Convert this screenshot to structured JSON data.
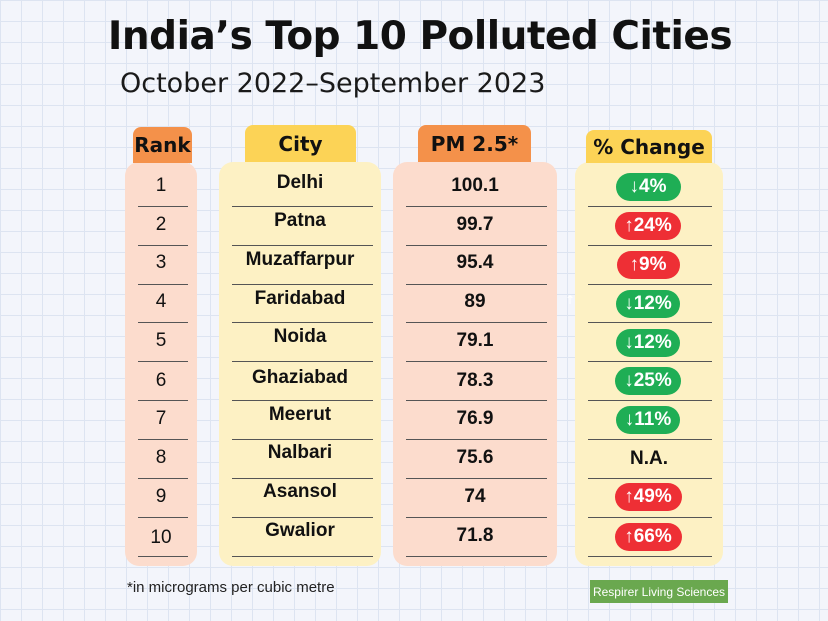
{
  "title": "India’s Top 10 Polluted Cities",
  "subtitle": "October 2022–September 2023",
  "columns": {
    "rank": "Rank",
    "city": "City",
    "pm": "PM 2.5*",
    "change": "% Change"
  },
  "colors": {
    "rank_header": "#f4914a",
    "rank_body": "#fcdccd",
    "city_header": "#fcd356",
    "city_body": "#fdf1c4",
    "pm_header": "#f4914a",
    "pm_body": "#fcdccd",
    "change_header": "#fcd356",
    "change_body": "#fdf1c4",
    "decrease": "#1fae55",
    "increase": "#ee2f35"
  },
  "chart_data": {
    "type": "table",
    "columns": [
      "Rank",
      "City",
      "PM 2.5*",
      "% Change"
    ],
    "rows": [
      {
        "rank": "1",
        "city": "Delhi",
        "pm": "100.1",
        "change": "↓4%",
        "direction": "down"
      },
      {
        "rank": "2",
        "city": "Patna",
        "pm": "99.7",
        "change": "↑24%",
        "direction": "up"
      },
      {
        "rank": "3",
        "city": "Muzaffarpur",
        "pm": "95.4",
        "change": "↑9%",
        "direction": "up"
      },
      {
        "rank": "4",
        "city": "Faridabad",
        "pm": "89",
        "change": "↓12%",
        "direction": "down"
      },
      {
        "rank": "5",
        "city": "Noida",
        "pm": "79.1",
        "change": "↓12%",
        "direction": "down"
      },
      {
        "rank": "6",
        "city": "Ghaziabad",
        "pm": "78.3",
        "change": "↓25%",
        "direction": "down"
      },
      {
        "rank": "7",
        "city": "Meerut",
        "pm": "76.9",
        "change": "↓11%",
        "direction": "down"
      },
      {
        "rank": "8",
        "city": "Nalbari",
        "pm": "75.6",
        "change": "N.A.",
        "direction": "none"
      },
      {
        "rank": "9",
        "city": "Asansol",
        "pm": "74",
        "change": "↑49%",
        "direction": "up"
      },
      {
        "rank": "10",
        "city": "Gwalior",
        "pm": "71.8",
        "change": "↑66%",
        "direction": "up"
      }
    ]
  },
  "footnote": "*in micrograms per cubic metre",
  "source": "Respirer Living Sciences"
}
